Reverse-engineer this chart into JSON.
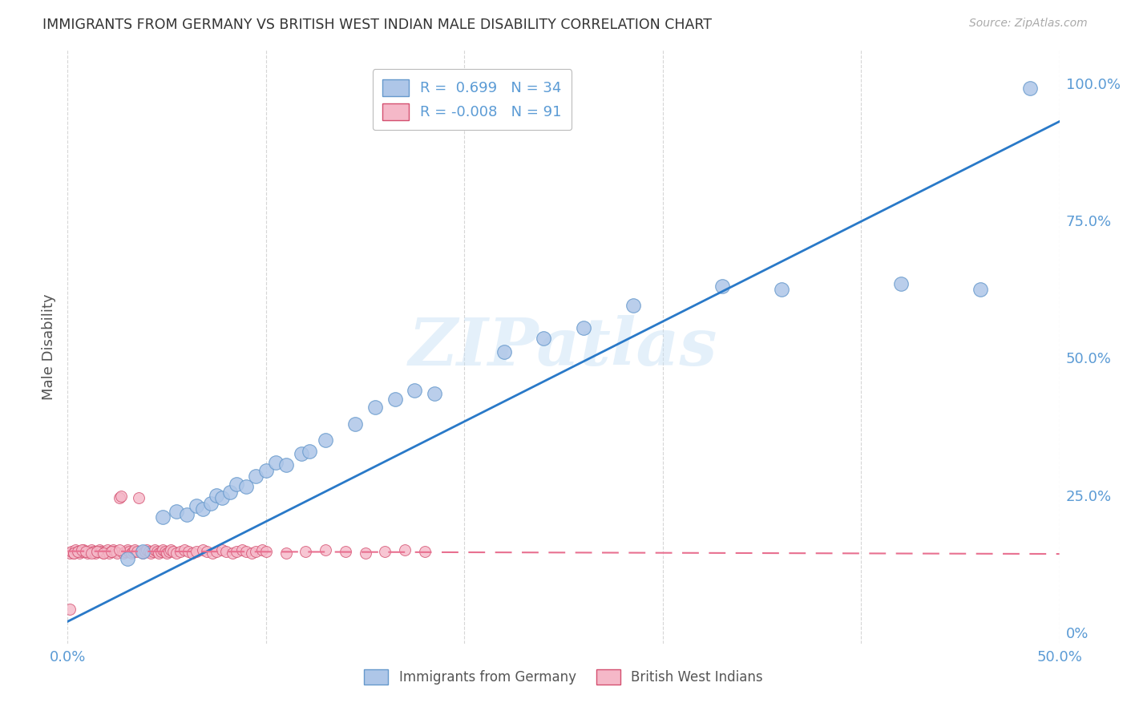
{
  "title": "IMMIGRANTS FROM GERMANY VS BRITISH WEST INDIAN MALE DISABILITY CORRELATION CHART",
  "source": "Source: ZipAtlas.com",
  "ylabel": "Male Disability",
  "watermark": "ZIPatlas",
  "blue_r": "0.699",
  "blue_n": "34",
  "pink_r": "-0.008",
  "pink_n": "91",
  "blue_scatter_x": [
    0.03,
    0.038,
    0.048,
    0.055,
    0.06,
    0.065,
    0.068,
    0.072,
    0.075,
    0.078,
    0.082,
    0.085,
    0.09,
    0.095,
    0.1,
    0.105,
    0.11,
    0.118,
    0.122,
    0.13,
    0.145,
    0.155,
    0.165,
    0.175,
    0.185,
    0.22,
    0.24,
    0.26,
    0.285,
    0.33,
    0.36,
    0.42,
    0.46,
    0.485
  ],
  "blue_scatter_y": [
    0.135,
    0.148,
    0.21,
    0.22,
    0.215,
    0.23,
    0.225,
    0.235,
    0.25,
    0.245,
    0.255,
    0.27,
    0.265,
    0.285,
    0.295,
    0.31,
    0.305,
    0.325,
    0.33,
    0.35,
    0.38,
    0.41,
    0.425,
    0.44,
    0.435,
    0.51,
    0.535,
    0.555,
    0.595,
    0.63,
    0.625,
    0.635,
    0.625,
    0.99
  ],
  "pink_scatter_x": [
    0.001,
    0.002,
    0.003,
    0.004,
    0.005,
    0.006,
    0.007,
    0.008,
    0.009,
    0.01,
    0.011,
    0.012,
    0.013,
    0.014,
    0.015,
    0.016,
    0.017,
    0.018,
    0.019,
    0.02,
    0.021,
    0.022,
    0.023,
    0.024,
    0.025,
    0.026,
    0.027,
    0.028,
    0.029,
    0.03,
    0.031,
    0.032,
    0.033,
    0.034,
    0.035,
    0.036,
    0.037,
    0.038,
    0.039,
    0.04,
    0.041,
    0.042,
    0.043,
    0.044,
    0.045,
    0.046,
    0.047,
    0.048,
    0.049,
    0.05,
    0.051,
    0.052,
    0.053,
    0.055,
    0.057,
    0.059,
    0.061,
    0.063,
    0.065,
    0.068,
    0.07,
    0.073,
    0.075,
    0.078,
    0.08,
    0.083,
    0.085,
    0.088,
    0.09,
    0.093,
    0.095,
    0.098,
    0.1,
    0.11,
    0.12,
    0.13,
    0.14,
    0.15,
    0.16,
    0.17,
    0.18,
    0.003,
    0.005,
    0.007,
    0.009,
    0.012,
    0.015,
    0.018,
    0.022,
    0.026,
    0.001
  ],
  "pink_scatter_y": [
    0.145,
    0.148,
    0.145,
    0.15,
    0.148,
    0.145,
    0.148,
    0.15,
    0.148,
    0.145,
    0.148,
    0.15,
    0.148,
    0.145,
    0.148,
    0.15,
    0.148,
    0.145,
    0.148,
    0.15,
    0.145,
    0.148,
    0.15,
    0.148,
    0.145,
    0.245,
    0.248,
    0.145,
    0.148,
    0.15,
    0.148,
    0.145,
    0.148,
    0.15,
    0.148,
    0.245,
    0.148,
    0.145,
    0.148,
    0.15,
    0.148,
    0.145,
    0.148,
    0.15,
    0.148,
    0.145,
    0.148,
    0.15,
    0.148,
    0.145,
    0.148,
    0.15,
    0.148,
    0.145,
    0.148,
    0.15,
    0.148,
    0.145,
    0.148,
    0.15,
    0.148,
    0.145,
    0.148,
    0.15,
    0.148,
    0.145,
    0.148,
    0.15,
    0.148,
    0.145,
    0.148,
    0.15,
    0.148,
    0.145,
    0.148,
    0.15,
    0.148,
    0.145,
    0.148,
    0.15,
    0.148,
    0.145,
    0.148,
    0.15,
    0.148,
    0.145,
    0.148,
    0.145,
    0.148,
    0.15,
    0.042
  ],
  "blue_line_x": [
    0.0,
    0.5
  ],
  "blue_line_y": [
    0.02,
    0.93
  ],
  "pink_line_x": [
    0.0,
    0.5
  ],
  "pink_line_y": [
    0.148,
    0.143
  ],
  "blue_color": "#aec6e8",
  "pink_color": "#f5b8c8",
  "blue_line_color": "#2979c8",
  "pink_line_color": "#e87090",
  "blue_edge_color": "#6699cc",
  "pink_edge_color": "#d45070",
  "background_color": "#ffffff",
  "grid_color": "#cccccc",
  "title_color": "#333333",
  "axis_color": "#5b9bd5",
  "label_color": "#555555",
  "xlim": [
    0.0,
    0.5
  ],
  "ylim": [
    -0.02,
    1.06
  ],
  "right_ytick_vals": [
    0.0,
    0.25,
    0.5,
    0.75,
    1.0
  ],
  "right_ytick_labels": [
    "0%",
    "25.0%",
    "50.0%",
    "75.0%",
    "100.0%"
  ]
}
